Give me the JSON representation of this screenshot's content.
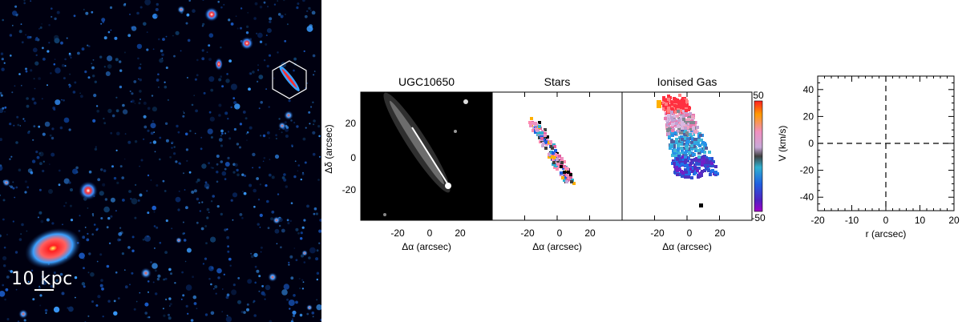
{
  "deep_field": {
    "scale_label": "10 kpc"
  },
  "maps": {
    "y_axis_label": "Δδ (arcsec)",
    "x_axis_label": "Δα (arcsec)",
    "x_ticks": [
      "-20",
      "0",
      "20"
    ],
    "y_ticks": [
      "20",
      "0",
      "-20"
    ],
    "panels": [
      {
        "title": "UGC10650"
      },
      {
        "title": "Stars"
      },
      {
        "title": "Ionised Gas"
      }
    ],
    "colorbar": {
      "max": "50",
      "min": "-50"
    }
  },
  "chart_data": {
    "type": "line",
    "xlabel": "r (arcsec)",
    "ylabel": "V (km/s)",
    "xlim": [
      -20,
      20
    ],
    "ylim": [
      -50,
      50
    ],
    "x_ticks": [
      "-20",
      "-10",
      "0",
      "10",
      "20"
    ],
    "y_ticks": [
      "40",
      "20",
      "0",
      "-20",
      "-40"
    ],
    "series": []
  }
}
